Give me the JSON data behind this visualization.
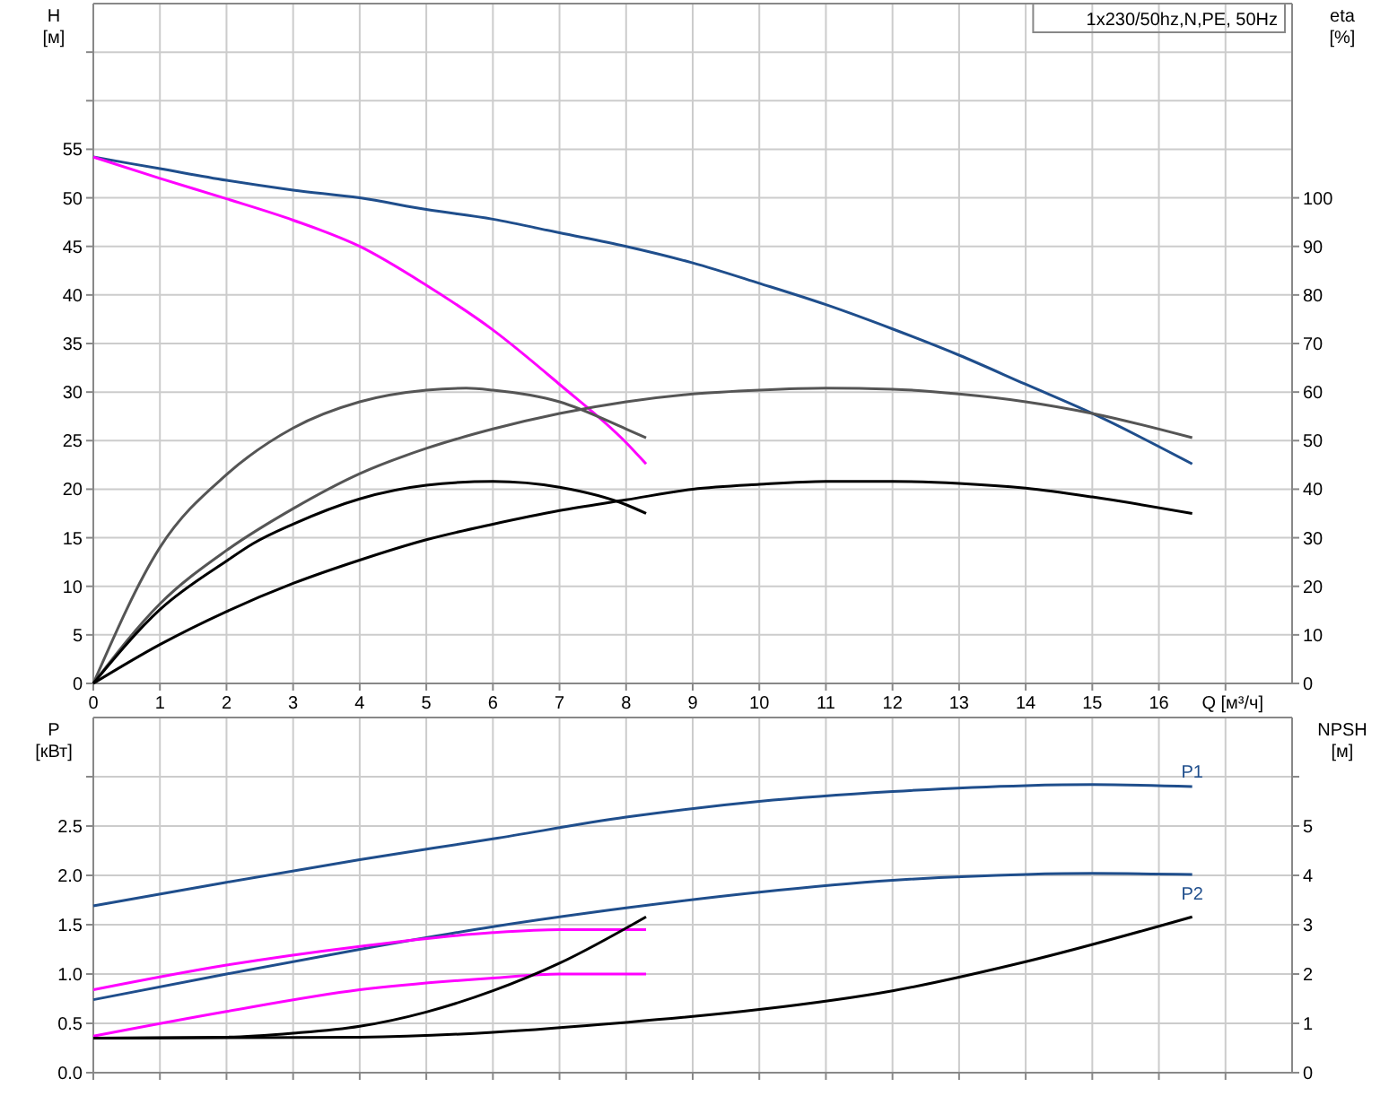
{
  "chart_data": [
    {
      "type": "line",
      "title": "1x230/50hz,N,PE, 50Hz",
      "xlabel": "Q [м³/ч]",
      "ylabel": "H [м]",
      "y2label": "eta [%]",
      "xlim": [
        0,
        18
      ],
      "xticks": [
        0,
        1,
        2,
        3,
        4,
        5,
        6,
        7,
        8,
        9,
        10,
        11,
        12,
        13,
        14,
        15,
        16,
        {
          "value": 17,
          "label": null
        }
      ],
      "ylim": [
        0,
        70
      ],
      "yticks": [
        0,
        5,
        10,
        15,
        20,
        25,
        30,
        35,
        40,
        45,
        50,
        55,
        {
          "value": 60,
          "label": null
        },
        {
          "value": 65,
          "label": null
        }
      ],
      "y2lim": [
        0,
        140
      ],
      "y2ticks": [
        0,
        10,
        20,
        30,
        40,
        50,
        60,
        70,
        80,
        90,
        100
      ],
      "grid": true,
      "series": [
        {
          "color": "#1f4e8c",
          "x": [
            0,
            1,
            2,
            3,
            4,
            5,
            6,
            7,
            8,
            9,
            10,
            11,
            12,
            13,
            14,
            15,
            16.5
          ],
          "values": [
            54.2,
            53,
            51.8,
            50.8,
            50,
            48.8,
            47.8,
            46.4,
            45,
            43.3,
            41.2,
            39,
            36.5,
            33.8,
            30.8,
            27.8,
            22.6
          ]
        },
        {
          "color": "#ff00ff",
          "x": [
            0,
            1,
            2,
            3,
            4,
            5,
            6,
            7,
            8,
            8.3
          ],
          "values": [
            54.2,
            52,
            49.9,
            47.7,
            45,
            41,
            36.4,
            30.8,
            24.8,
            22.6
          ]
        },
        {
          "color": "#555555",
          "axis": "y2",
          "x": [
            0,
            1,
            2,
            3,
            4,
            5,
            5.6,
            6,
            7,
            8,
            8.3
          ],
          "values": [
            0,
            28,
            43,
            52.6,
            58,
            60.4,
            60.8,
            60.4,
            58,
            52.4,
            50.6
          ]
        },
        {
          "color": "#555555",
          "axis": "y2",
          "x": [
            0,
            1,
            2,
            3,
            4,
            5,
            6,
            7,
            8,
            9,
            10,
            11,
            12,
            13,
            14,
            15,
            16.5
          ],
          "values": [
            0,
            16.4,
            27.4,
            36,
            43.2,
            48.4,
            52.4,
            55.6,
            58,
            59.6,
            60.4,
            60.8,
            60.6,
            59.6,
            58,
            55.6,
            50.6
          ]
        },
        {
          "color": "#000000",
          "axis": "y2",
          "x": [
            0,
            1,
            2,
            2.4,
            3,
            4,
            5,
            6,
            7,
            8,
            8.3
          ],
          "values": [
            0,
            15.2,
            25.2,
            28.8,
            32.8,
            38,
            40.8,
            41.6,
            40.4,
            36.8,
            35
          ]
        },
        {
          "color": "#000000",
          "axis": "y2",
          "x": [
            0,
            1,
            2,
            3,
            4,
            5,
            6,
            7,
            8,
            9,
            10,
            11,
            12,
            13,
            14,
            15,
            16.5
          ],
          "values": [
            0,
            8,
            14.8,
            20.6,
            25.4,
            29.6,
            32.8,
            35.6,
            37.8,
            40,
            41,
            41.6,
            41.6,
            41.2,
            40.2,
            38.4,
            35
          ]
        }
      ]
    },
    {
      "type": "line",
      "ylabel": "P [кВт]",
      "y2label": "NPSH [м]",
      "xlim": [
        0,
        18
      ],
      "xticks": [
        0,
        1,
        2,
        3,
        4,
        5,
        6,
        7,
        8,
        9,
        10,
        11,
        12,
        13,
        14,
        15,
        16,
        17
      ],
      "tick_labels": "y",
      "ylim": [
        0,
        3.6
      ],
      "yticks": [
        {
          "value": 0,
          "label": "0.0"
        },
        0.5,
        {
          "value": 1,
          "label": "1.0"
        },
        1.5,
        {
          "value": 2,
          "label": "2.0"
        },
        2.5,
        {
          "value": 3,
          "label": null
        }
      ],
      "y2lim": [
        0,
        7.2
      ],
      "y2ticks": [
        0,
        1,
        2,
        3,
        4,
        5,
        {
          "value": 6,
          "label": null
        }
      ],
      "grid": true,
      "series": [
        {
          "name": "P1",
          "color": "#1f4e8c",
          "x": [
            0,
            2,
            4,
            6,
            8,
            10,
            12,
            14,
            15,
            16.5
          ],
          "values": [
            1.69,
            1.93,
            2.16,
            2.37,
            2.59,
            2.75,
            2.85,
            2.91,
            2.92,
            2.9
          ]
        },
        {
          "name": "P2",
          "color": "#1f4e8c",
          "x": [
            0,
            2,
            4,
            6,
            8,
            10,
            12,
            14,
            15,
            16.5
          ],
          "values": [
            0.74,
            1,
            1.25,
            1.48,
            1.67,
            1.83,
            1.95,
            2.01,
            2.02,
            2.01
          ]
        },
        {
          "color": "#ff00ff",
          "x": [
            0,
            2,
            4,
            6,
            7,
            8.3
          ],
          "values": [
            0.84,
            1.09,
            1.28,
            1.42,
            1.45,
            1.45
          ]
        },
        {
          "color": "#ff00ff",
          "x": [
            0,
            2,
            4,
            6,
            7,
            8.3
          ],
          "values": [
            0.37,
            0.62,
            0.84,
            0.96,
            1,
            1
          ]
        },
        {
          "color": "#000000",
          "axis": "y2",
          "x": [
            0,
            2,
            3,
            4,
            5,
            6,
            7,
            8.3
          ],
          "values": [
            0.7,
            0.72,
            0.8,
            0.94,
            1.23,
            1.66,
            2.22,
            3.16
          ]
        },
        {
          "color": "#000000",
          "axis": "y2",
          "x": [
            0,
            4,
            8,
            10,
            12,
            14,
            16.5
          ],
          "values": [
            0.7,
            0.72,
            1.02,
            1.28,
            1.66,
            2.25,
            3.16
          ]
        }
      ]
    }
  ]
}
